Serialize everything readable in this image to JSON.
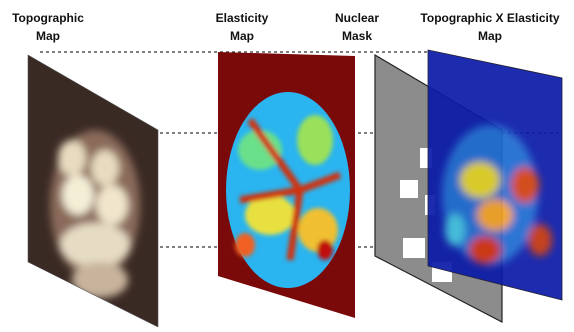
{
  "panels": [
    {
      "title_lines": [
        "Topographic",
        "Map"
      ]
    },
    {
      "title_lines": [
        "Elasticity",
        "Map"
      ]
    },
    {
      "title_lines": [
        "Nuclear",
        "Mask"
      ]
    },
    {
      "title_lines": [
        "Topographic X Elasticity",
        "Map"
      ]
    }
  ]
}
